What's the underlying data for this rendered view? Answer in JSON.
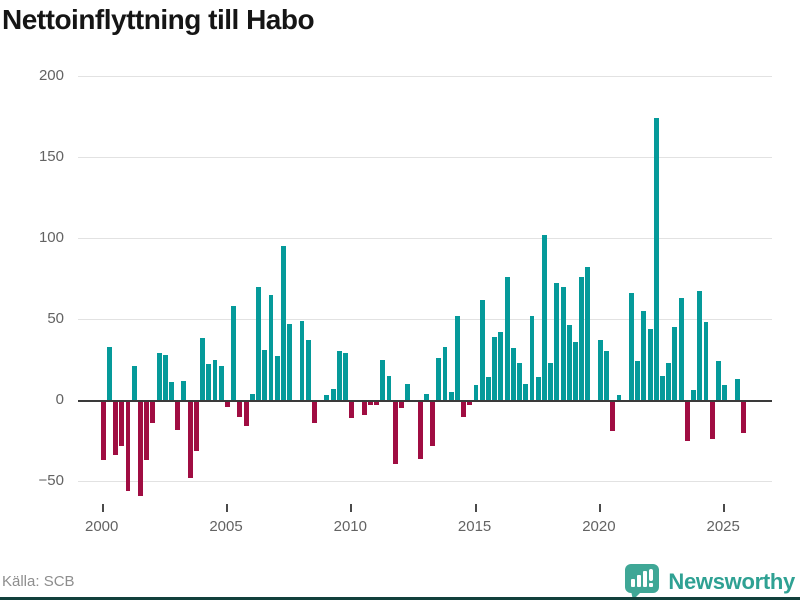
{
  "header": {
    "title": "Nettoinflyttning till Habo"
  },
  "footer": {
    "source": "Källa: SCB",
    "brand": "Newsworthy"
  },
  "colors": {
    "positive_bar": "#059a9a",
    "negative_bar": "#a00d42",
    "grid": "#e2e2e2",
    "zero_axis": "#3a3a3a",
    "tick_label": "#636363",
    "title_text": "#151515",
    "source_text": "#8e8e8e",
    "brand_teal": "#3fa796",
    "bottom_strip": "#12403c"
  },
  "chart_data": {
    "type": "bar",
    "title": "Nettoinflyttning till Habo",
    "subtitle": "",
    "xlabel": "",
    "ylabel": "",
    "x_unit": "quarter",
    "start_year": 2000,
    "end_year": 2025,
    "values": [
      -36,
      33,
      -33,
      -27,
      -55,
      21,
      -58,
      -36,
      -13,
      29,
      28,
      11,
      -17,
      12,
      -47,
      -30,
      38,
      22,
      25,
      21,
      -3,
      58,
      -9,
      -15,
      4,
      70,
      31,
      65,
      27,
      95,
      47,
      0,
      49,
      37,
      -13,
      0,
      3,
      7,
      30,
      29,
      -10,
      0,
      -8,
      -2,
      -2,
      25,
      15,
      -38,
      -4,
      10,
      0,
      -35,
      4,
      -27,
      26,
      33,
      5,
      52,
      -9,
      -2,
      9,
      62,
      14,
      39,
      42,
      76,
      32,
      23,
      10,
      52,
      14,
      102,
      23,
      72,
      70,
      46,
      36,
      76,
      82,
      0,
      37,
      30,
      -18,
      3,
      0,
      66,
      24,
      55,
      44,
      174,
      15,
      23,
      45,
      63,
      -24,
      6,
      67,
      48,
      -23,
      24,
      9,
      0,
      13,
      -19
    ],
    "y_ticks": [
      {
        "value": 200,
        "label": "200"
      },
      {
        "value": 150,
        "label": "150"
      },
      {
        "value": 100,
        "label": "100"
      },
      {
        "value": 50,
        "label": "50"
      },
      {
        "value": 0,
        "label": "0"
      },
      {
        "value": -50,
        "label": "−50"
      }
    ],
    "x_ticks": [
      {
        "value": 2000,
        "label": "2000"
      },
      {
        "value": 2005,
        "label": "2005"
      },
      {
        "value": 2010,
        "label": "2010"
      },
      {
        "value": 2015,
        "label": "2015"
      },
      {
        "value": 2020,
        "label": "2020"
      },
      {
        "value": 2025,
        "label": "2025"
      }
    ],
    "ylim": [
      -75,
      210
    ],
    "grid": "horizontal",
    "legend": "none",
    "bar_color_rule": "positive=teal, negative=dark-red"
  }
}
